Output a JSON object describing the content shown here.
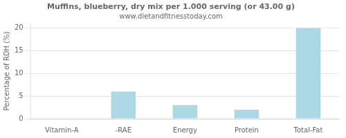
{
  "chart_data": {
    "type": "bar",
    "title": "Muffins, blueberry, dry mix per 1.000 serving (or 43.00 g)",
    "subtitle": "www.dietandfitnesstoday.com",
    "ylabel": "Percentage of RDH (%)",
    "categories": [
      "Vitamin-A",
      "-RAE",
      "Energy",
      "Protein",
      "Total-Fat"
    ],
    "values": [
      0.0,
      6.0,
      3.0,
      2.0,
      20.0
    ],
    "color": "#add8e6",
    "ylim": [
      0,
      21
    ],
    "yticks": [
      0,
      5,
      10,
      15,
      20
    ],
    "grid": true
  }
}
